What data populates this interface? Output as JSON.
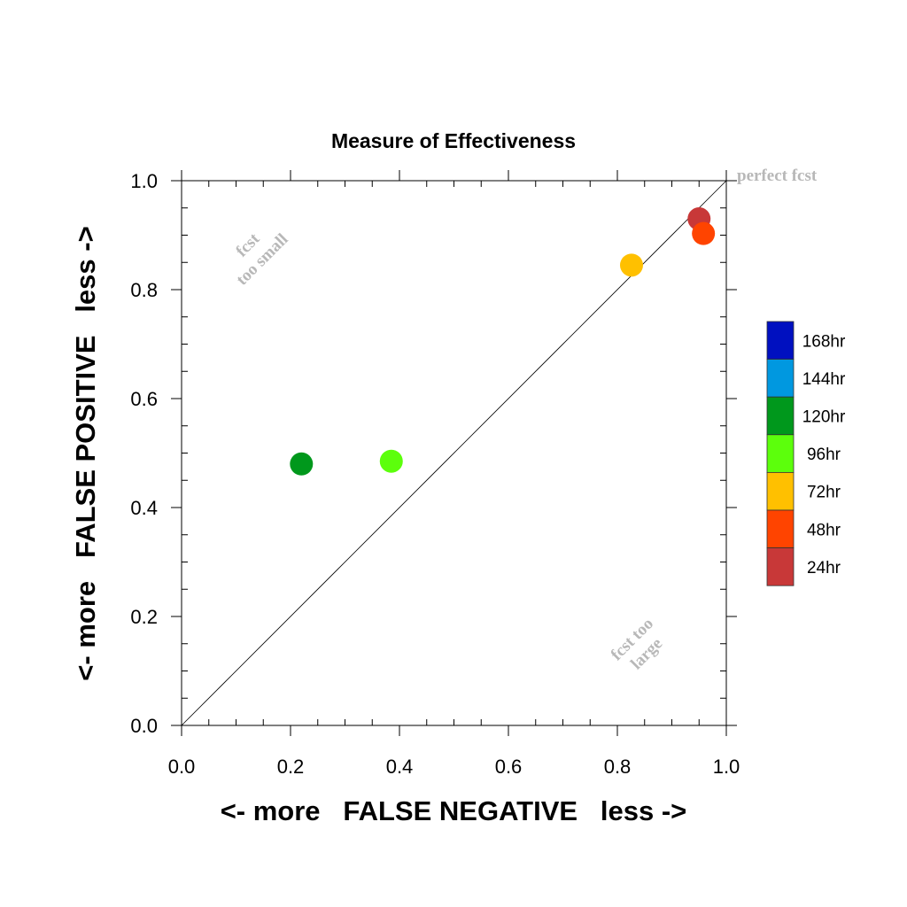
{
  "chart_data": {
    "type": "scatter",
    "title": "Measure of Effectiveness",
    "xlabel": "<- more   FALSE NEGATIVE   less ->",
    "ylabel": "<- more   FALSE POSITIVE   less ->",
    "xlim": [
      0.0,
      1.0
    ],
    "ylim": [
      0.0,
      1.0
    ],
    "xticks": [
      "0.0",
      "0.2",
      "0.4",
      "0.6",
      "0.8",
      "1.0"
    ],
    "yticks": [
      "0.0",
      "0.2",
      "0.4",
      "0.6",
      "0.8",
      "1.0"
    ],
    "grid": false,
    "reference_line": "diagonal y = x",
    "legend_position": "right",
    "legend": [
      {
        "label": "168hr",
        "color": "#0010c0"
      },
      {
        "label": "144hr",
        "color": "#0098e0"
      },
      {
        "label": "120hr",
        "color": "#00981c"
      },
      {
        "label": "96hr",
        "color": "#5cff0c"
      },
      {
        "label": "72hr",
        "color": "#ffc000"
      },
      {
        "label": "48hr",
        "color": "#ff4400"
      },
      {
        "label": "24hr",
        "color": "#c83838"
      }
    ],
    "series": [
      {
        "name": "24hr",
        "color": "#c83838",
        "x": 0.95,
        "y": 0.93
      },
      {
        "name": "48hr",
        "color": "#ff4400",
        "x": 0.958,
        "y": 0.903
      },
      {
        "name": "72hr",
        "color": "#ffc000",
        "x": 0.826,
        "y": 0.845
      },
      {
        "name": "96hr",
        "color": "#5cff0c",
        "x": 0.385,
        "y": 0.485
      },
      {
        "name": "120hr",
        "color": "#00981c",
        "x": 0.22,
        "y": 0.48
      }
    ],
    "annotations": {
      "perfect": "perfect fcst",
      "small_line1": "fcst",
      "small_line2": "too small",
      "large_line1": "fcst too",
      "large_line2": "large"
    }
  }
}
